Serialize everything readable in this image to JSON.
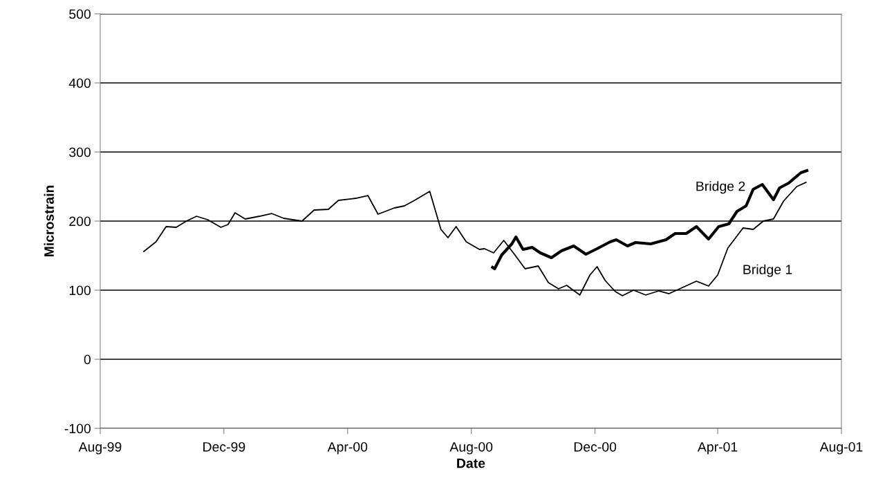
{
  "chart_data": {
    "type": "line",
    "xlabel": "Date",
    "ylabel": "Microstrain",
    "xlim": [
      "1999-08-01",
      "2001-08-01"
    ],
    "xticks": [
      {
        "value": "1999-08-01",
        "label": "Aug-99"
      },
      {
        "value": "1999-12-01",
        "label": "Dec-99"
      },
      {
        "value": "2000-04-01",
        "label": "Apr-00"
      },
      {
        "value": "2000-08-01",
        "label": "Aug-00"
      },
      {
        "value": "2000-12-01",
        "label": "Dec-00"
      },
      {
        "value": "2001-04-01",
        "label": "Apr-01"
      },
      {
        "value": "2001-08-01",
        "label": "Aug-01"
      }
    ],
    "ylim": [
      -100,
      500
    ],
    "yticks": [
      {
        "value": -100,
        "label": "-100"
      },
      0,
      100,
      200,
      300,
      400,
      500
    ],
    "grid": "y",
    "legend": false,
    "marker": "none",
    "line_style": "solid",
    "series": [
      {
        "name": "Bridge 1",
        "color": "#000000",
        "x": [
          "1999-09-13",
          "1999-09-25",
          "1999-10-05",
          "1999-10-15",
          "1999-10-25",
          "1999-11-04",
          "1999-11-15",
          "1999-11-28",
          "1999-12-05",
          "1999-12-12",
          "1999-12-22",
          "2000-01-05",
          "2000-01-17",
          "2000-01-29",
          "2000-02-16",
          "2000-02-28",
          "2000-03-13",
          "2000-03-23",
          "2000-04-09",
          "2000-04-21",
          "2000-05-01",
          "2000-05-17",
          "2000-05-27",
          "2000-06-06",
          "2000-06-21",
          "2000-07-02",
          "2000-07-09",
          "2000-07-17",
          "2000-07-27",
          "2000-08-09",
          "2000-08-14",
          "2000-08-23",
          "2000-09-02",
          "2000-09-13",
          "2000-09-23",
          "2000-10-06",
          "2000-10-16",
          "2000-10-26",
          "2000-11-03",
          "2000-11-16",
          "2000-11-26",
          "2000-12-03",
          "2000-12-11",
          "2000-12-21",
          "2000-12-28",
          "2001-01-08",
          "2001-01-20",
          "2001-02-02",
          "2001-02-12",
          "2001-02-24",
          "2001-03-11",
          "2001-03-23",
          "2001-04-01",
          "2001-04-11",
          "2001-04-26",
          "2001-05-06",
          "2001-05-16",
          "2001-05-26",
          "2001-06-05",
          "2001-06-18",
          "2001-06-27"
        ],
        "values": [
          156,
          170,
          192,
          191,
          200,
          207,
          202,
          191,
          195,
          212,
          203,
          207,
          211,
          204,
          200,
          216,
          217,
          230,
          233,
          237,
          210,
          219,
          222,
          230,
          243,
          188,
          176,
          192,
          170,
          159,
          160,
          154,
          172,
          151,
          131,
          135,
          111,
          102,
          107,
          93,
          122,
          134,
          114,
          98,
          92,
          100,
          93,
          99,
          95,
          103,
          113,
          106,
          122,
          161,
          190,
          188,
          200,
          203,
          229,
          250,
          256
        ]
      },
      {
        "name": "Bridge 2",
        "color": "#000000",
        "x": [
          "2000-08-22",
          "2000-08-24",
          "2000-08-31",
          "2000-09-10",
          "2000-09-14",
          "2000-09-21",
          "2000-09-30",
          "2000-10-08",
          "2000-10-19",
          "2000-10-29",
          "2000-11-10",
          "2000-11-22",
          "2000-12-03",
          "2000-12-16",
          "2000-12-22",
          "2001-01-02",
          "2001-01-10",
          "2001-01-25",
          "2001-02-09",
          "2001-02-18",
          "2001-03-01",
          "2001-03-11",
          "2001-03-23",
          "2001-04-02",
          "2001-04-12",
          "2001-04-20",
          "2001-04-29",
          "2001-05-06",
          "2001-05-15",
          "2001-05-26",
          "2001-06-01",
          "2001-06-10",
          "2001-06-22",
          "2001-06-28"
        ],
        "values": [
          133,
          131,
          151,
          167,
          177,
          159,
          162,
          154,
          147,
          157,
          164,
          152,
          160,
          170,
          173,
          164,
          169,
          167,
          173,
          182,
          182,
          192,
          174,
          192,
          196,
          214,
          222,
          246,
          253,
          231,
          248,
          255,
          270,
          273
        ]
      }
    ]
  }
}
